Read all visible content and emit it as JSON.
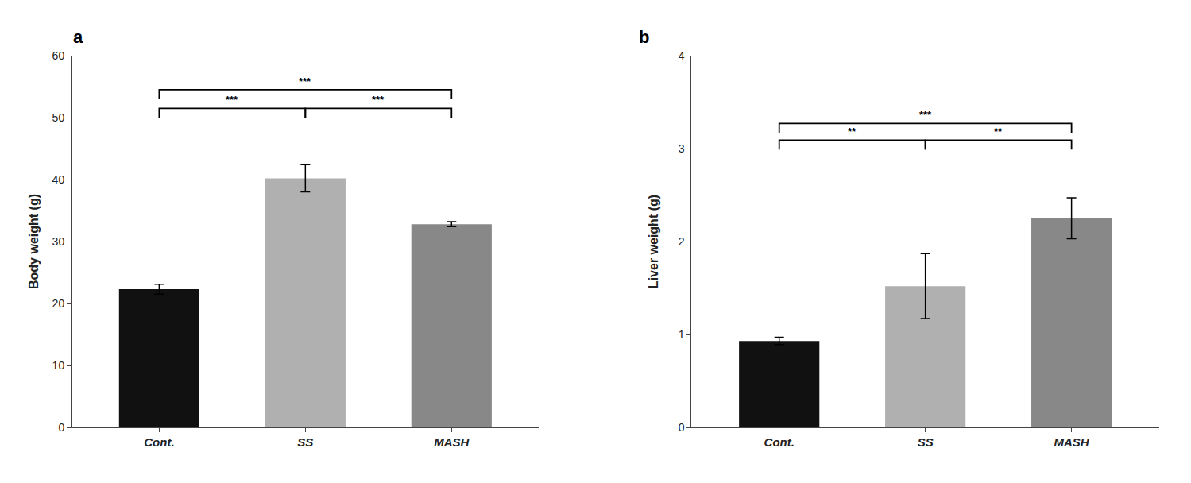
{
  "chart_data": [
    {
      "type": "bar",
      "title": "a",
      "categories": [
        "Cont.",
        "SS",
        "MASH"
      ],
      "values": [
        22.3,
        40.2,
        32.8
      ],
      "errors": [
        0.8,
        2.2,
        0.4
      ],
      "colors": [
        "#111111",
        "#b0b0b0",
        "#888888"
      ],
      "ylabel": "Body weight (g)",
      "ylim": [
        0,
        60
      ],
      "yticks": [
        0,
        10,
        20,
        30,
        40,
        50,
        60
      ],
      "grid": false,
      "annotations": [
        {
          "from": "Cont.",
          "to": "SS",
          "y": 51.5,
          "label": "***"
        },
        {
          "from": "Cont.",
          "to": "MASH",
          "y": 54.5,
          "label": "***"
        },
        {
          "from": "SS",
          "to": "MASH",
          "y": 51.5,
          "label": "***"
        }
      ]
    },
    {
      "type": "bar",
      "title": "b",
      "categories": [
        "Cont.",
        "SS",
        "MASH"
      ],
      "values": [
        0.93,
        1.52,
        2.25
      ],
      "errors": [
        0.04,
        0.35,
        0.22
      ],
      "colors": [
        "#111111",
        "#b0b0b0",
        "#888888"
      ],
      "ylabel": "Liver weight (g)",
      "ylim": [
        0,
        4
      ],
      "yticks": [
        0,
        1,
        2,
        3,
        4
      ],
      "grid": false,
      "annotations": [
        {
          "from": "Cont.",
          "to": "SS",
          "y": 3.09,
          "label": "**"
        },
        {
          "from": "Cont.",
          "to": "MASH",
          "y": 3.27,
          "label": "***"
        },
        {
          "from": "SS",
          "to": "MASH",
          "y": 3.09,
          "label": "**"
        }
      ]
    }
  ]
}
